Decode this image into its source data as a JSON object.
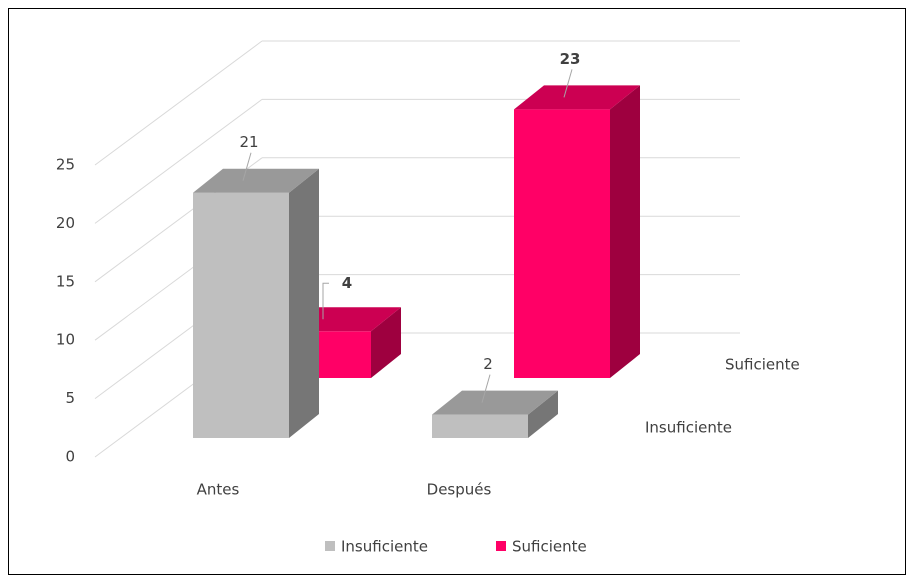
{
  "chart_data": {
    "type": "bar3d",
    "categories": [
      "Antes",
      "Después"
    ],
    "series": [
      {
        "name": "Insuficiente",
        "color": "#bfbfbf",
        "values": [
          21,
          2
        ]
      },
      {
        "name": "Suficiente",
        "color": "#ff0066",
        "values": [
          4,
          23
        ]
      }
    ],
    "ylim": [
      0,
      25
    ],
    "yticks": [
      0,
      5,
      10,
      15,
      20,
      25
    ],
    "grid": true,
    "legend": "bottom"
  }
}
